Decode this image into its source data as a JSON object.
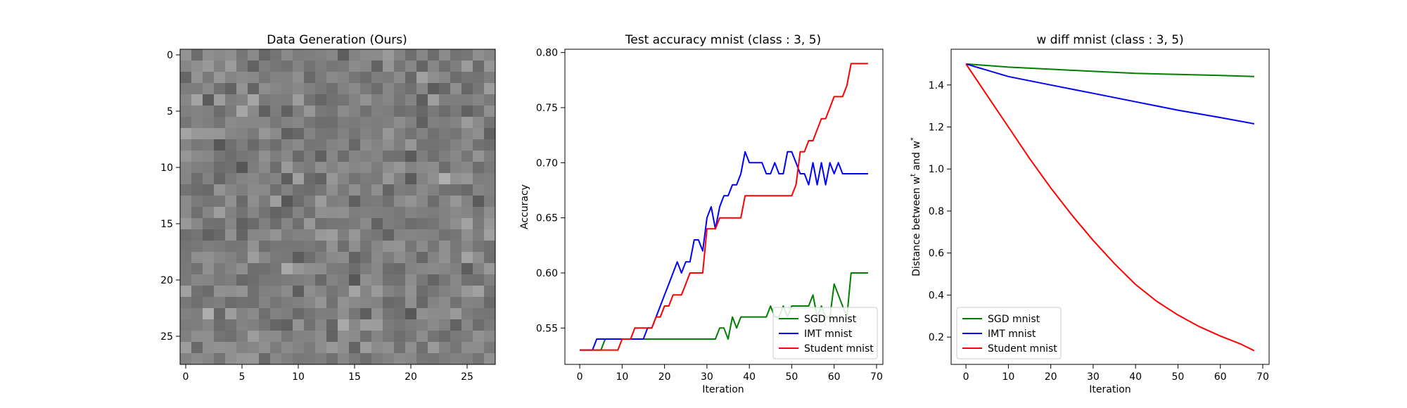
{
  "chart_data": [
    {
      "type": "heatmap",
      "title": "Data Generation (Ours)",
      "xlabel": "",
      "ylabel": "",
      "xlim": [
        -0.5,
        27.5
      ],
      "ylim": [
        27.5,
        -0.5
      ],
      "xticks": [
        0,
        5,
        10,
        15,
        20,
        25
      ],
      "yticks": [
        0,
        5,
        10,
        15,
        20,
        25
      ],
      "grid_size": [
        28,
        28
      ],
      "colormap": "gray",
      "pixel_seed": 7
    },
    {
      "type": "line",
      "title": "Test accuracy mnist (class : 3, 5)",
      "xlabel": "Iteration",
      "ylabel": "Accuracy",
      "xlim": [
        -3.5,
        71.5
      ],
      "ylim": [
        0.517,
        0.803
      ],
      "xticks": [
        0,
        10,
        20,
        30,
        40,
        50,
        60,
        70
      ],
      "yticks": [
        0.55,
        0.6,
        0.65,
        0.7,
        0.75,
        0.8
      ],
      "grid": false,
      "legend": "lower-right",
      "series": [
        {
          "name": "SGD mnist",
          "color": "#008000",
          "points": [
            [
              0,
              0.53
            ],
            [
              3,
              0.53
            ],
            [
              4,
              0.53
            ],
            [
              5,
              0.53
            ],
            [
              6,
              0.54
            ],
            [
              10,
              0.54
            ],
            [
              15,
              0.54
            ],
            [
              20,
              0.54
            ],
            [
              25,
              0.54
            ],
            [
              30,
              0.54
            ],
            [
              32,
              0.54
            ],
            [
              33,
              0.55
            ],
            [
              34,
              0.55
            ],
            [
              35,
              0.54
            ],
            [
              36,
              0.56
            ],
            [
              37,
              0.55
            ],
            [
              38,
              0.56
            ],
            [
              42,
              0.56
            ],
            [
              44,
              0.56
            ],
            [
              45,
              0.57
            ],
            [
              46,
              0.56
            ],
            [
              47,
              0.56
            ],
            [
              48,
              0.57
            ],
            [
              49,
              0.56
            ],
            [
              50,
              0.57
            ],
            [
              54,
              0.57
            ],
            [
              55,
              0.58
            ],
            [
              56,
              0.56
            ],
            [
              57,
              0.57
            ],
            [
              58,
              0.56
            ],
            [
              59,
              0.56
            ],
            [
              60,
              0.59
            ],
            [
              61,
              0.58
            ],
            [
              62,
              0.57
            ],
            [
              63,
              0.56
            ],
            [
              64,
              0.6
            ],
            [
              68,
              0.6
            ]
          ]
        },
        {
          "name": "IMT mnist",
          "color": "#0000ff",
          "points": [
            [
              0,
              0.53
            ],
            [
              3,
              0.53
            ],
            [
              4,
              0.54
            ],
            [
              8,
              0.54
            ],
            [
              10,
              0.54
            ],
            [
              15,
              0.54
            ],
            [
              16,
              0.55
            ],
            [
              17,
              0.55
            ],
            [
              18,
              0.56
            ],
            [
              19,
              0.57
            ],
            [
              20,
              0.58
            ],
            [
              21,
              0.59
            ],
            [
              22,
              0.6
            ],
            [
              23,
              0.61
            ],
            [
              24,
              0.6
            ],
            [
              25,
              0.61
            ],
            [
              26,
              0.61
            ],
            [
              27,
              0.63
            ],
            [
              28,
              0.63
            ],
            [
              29,
              0.62
            ],
            [
              30,
              0.65
            ],
            [
              31,
              0.66
            ],
            [
              32,
              0.64
            ],
            [
              33,
              0.66
            ],
            [
              34,
              0.67
            ],
            [
              35,
              0.67
            ],
            [
              36,
              0.68
            ],
            [
              37,
              0.68
            ],
            [
              38,
              0.69
            ],
            [
              39,
              0.71
            ],
            [
              40,
              0.7
            ],
            [
              41,
              0.7
            ],
            [
              42,
              0.7
            ],
            [
              43,
              0.7
            ],
            [
              44,
              0.69
            ],
            [
              45,
              0.69
            ],
            [
              46,
              0.7
            ],
            [
              47,
              0.69
            ],
            [
              48,
              0.69
            ],
            [
              49,
              0.71
            ],
            [
              50,
              0.71
            ],
            [
              51,
              0.7
            ],
            [
              52,
              0.69
            ],
            [
              53,
              0.69
            ],
            [
              54,
              0.68
            ],
            [
              55,
              0.7
            ],
            [
              56,
              0.68
            ],
            [
              57,
              0.7
            ],
            [
              58,
              0.68
            ],
            [
              59,
              0.7
            ],
            [
              60,
              0.69
            ],
            [
              61,
              0.7
            ],
            [
              62,
              0.69
            ],
            [
              63,
              0.69
            ],
            [
              68,
              0.69
            ]
          ]
        },
        {
          "name": "Student mnist",
          "color": "#ff0000",
          "points": [
            [
              0,
              0.53
            ],
            [
              9,
              0.53
            ],
            [
              10,
              0.54
            ],
            [
              12,
              0.54
            ],
            [
              13,
              0.55
            ],
            [
              17,
              0.55
            ],
            [
              18,
              0.56
            ],
            [
              19,
              0.56
            ],
            [
              20,
              0.57
            ],
            [
              21,
              0.57
            ],
            [
              22,
              0.58
            ],
            [
              24,
              0.58
            ],
            [
              25,
              0.59
            ],
            [
              26,
              0.6
            ],
            [
              29,
              0.6
            ],
            [
              30,
              0.64
            ],
            [
              32,
              0.64
            ],
            [
              33,
              0.65
            ],
            [
              38,
              0.65
            ],
            [
              39,
              0.67
            ],
            [
              50,
              0.67
            ],
            [
              51,
              0.68
            ],
            [
              52,
              0.71
            ],
            [
              53,
              0.71
            ],
            [
              54,
              0.72
            ],
            [
              55,
              0.72
            ],
            [
              56,
              0.73
            ],
            [
              57,
              0.74
            ],
            [
              58,
              0.74
            ],
            [
              59,
              0.75
            ],
            [
              60,
              0.76
            ],
            [
              62,
              0.76
            ],
            [
              63,
              0.77
            ],
            [
              64,
              0.79
            ],
            [
              68,
              0.79
            ]
          ]
        }
      ]
    },
    {
      "type": "line",
      "title": "w diff mnist (class : 3, 5)",
      "xlabel": "Iteration",
      "ylabel": "Distance between w",
      "ylabel_sup1": "t",
      "ylabel_mid": " and w",
      "ylabel_sup2": "*",
      "xlim": [
        -3.5,
        71.5
      ],
      "ylim": [
        0.07,
        1.57
      ],
      "xticks": [
        0,
        10,
        20,
        30,
        40,
        50,
        60,
        70
      ],
      "yticks": [
        0.2,
        0.4,
        0.6,
        0.8,
        1.0,
        1.2,
        1.4
      ],
      "grid": false,
      "legend": "lower-left",
      "series": [
        {
          "name": "SGD mnist",
          "color": "#008000",
          "points": [
            [
              0,
              1.5
            ],
            [
              10,
              1.485
            ],
            [
              20,
              1.475
            ],
            [
              30,
              1.465
            ],
            [
              40,
              1.455
            ],
            [
              50,
              1.45
            ],
            [
              60,
              1.445
            ],
            [
              68,
              1.44
            ]
          ]
        },
        {
          "name": "IMT mnist",
          "color": "#0000ff",
          "points": [
            [
              0,
              1.5
            ],
            [
              10,
              1.44
            ],
            [
              20,
              1.4
            ],
            [
              30,
              1.36
            ],
            [
              40,
              1.32
            ],
            [
              50,
              1.28
            ],
            [
              60,
              1.245
            ],
            [
              68,
              1.215
            ]
          ]
        },
        {
          "name": "Student mnist",
          "color": "#ff0000",
          "points": [
            [
              0,
              1.5
            ],
            [
              5,
              1.35
            ],
            [
              10,
              1.2
            ],
            [
              15,
              1.05
            ],
            [
              20,
              0.91
            ],
            [
              25,
              0.78
            ],
            [
              30,
              0.66
            ],
            [
              35,
              0.55
            ],
            [
              40,
              0.45
            ],
            [
              45,
              0.37
            ],
            [
              50,
              0.305
            ],
            [
              55,
              0.25
            ],
            [
              60,
              0.205
            ],
            [
              65,
              0.165
            ],
            [
              68,
              0.135
            ]
          ]
        }
      ]
    }
  ]
}
